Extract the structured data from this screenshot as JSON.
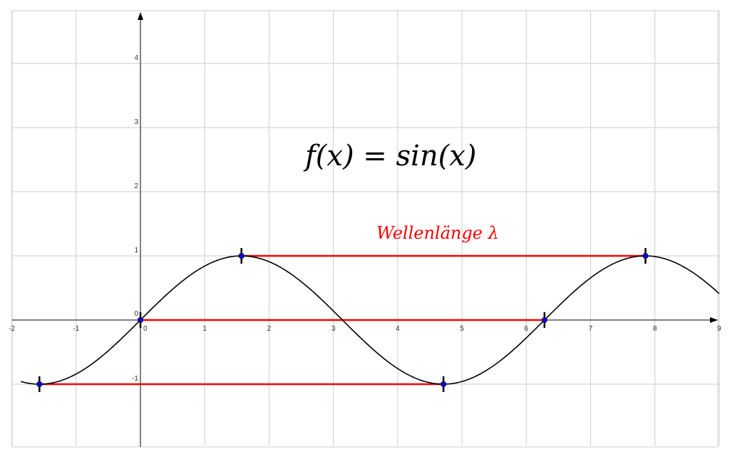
{
  "chart_data": {
    "type": "line",
    "title": "",
    "function_label": "f(x) = sin(x)",
    "xlim": [
      -2,
      9
    ],
    "ylim": [
      -1.96,
      4.83
    ],
    "grid": true,
    "x_ticks": [
      "-2",
      "-1",
      "0",
      "1",
      "2",
      "3",
      "4",
      "5",
      "6",
      "7",
      "8",
      "9"
    ],
    "y_ticks": [
      "-1",
      "0",
      "1",
      "2",
      "3",
      "4"
    ],
    "series": [
      {
        "name": "",
        "function": "sin(x)",
        "x_range": [
          -1.86,
          9.0
        ],
        "color": "#000000"
      }
    ],
    "points": [
      {
        "x": -1.5708,
        "y": -1
      },
      {
        "x": 0,
        "y": 0
      },
      {
        "x": 1.5708,
        "y": 1
      },
      {
        "x": 4.7124,
        "y": -1
      },
      {
        "x": 6.2832,
        "y": 0
      },
      {
        "x": 7.854,
        "y": 1
      }
    ],
    "wavelength_segments": [
      {
        "x1": 1.5708,
        "x2": 7.854,
        "y": 1
      },
      {
        "x1": 0,
        "x2": 6.2832,
        "y": 0
      },
      {
        "x1": -1.5708,
        "x2": 4.7124,
        "y": -1
      }
    ],
    "annotations": [
      {
        "text": "Wellenlänge λ",
        "color": "#ff0000"
      }
    ],
    "colors": {
      "grid": "#cccccc",
      "curve": "#000000",
      "segments": "#ff0000",
      "points": "#0000ff"
    }
  }
}
